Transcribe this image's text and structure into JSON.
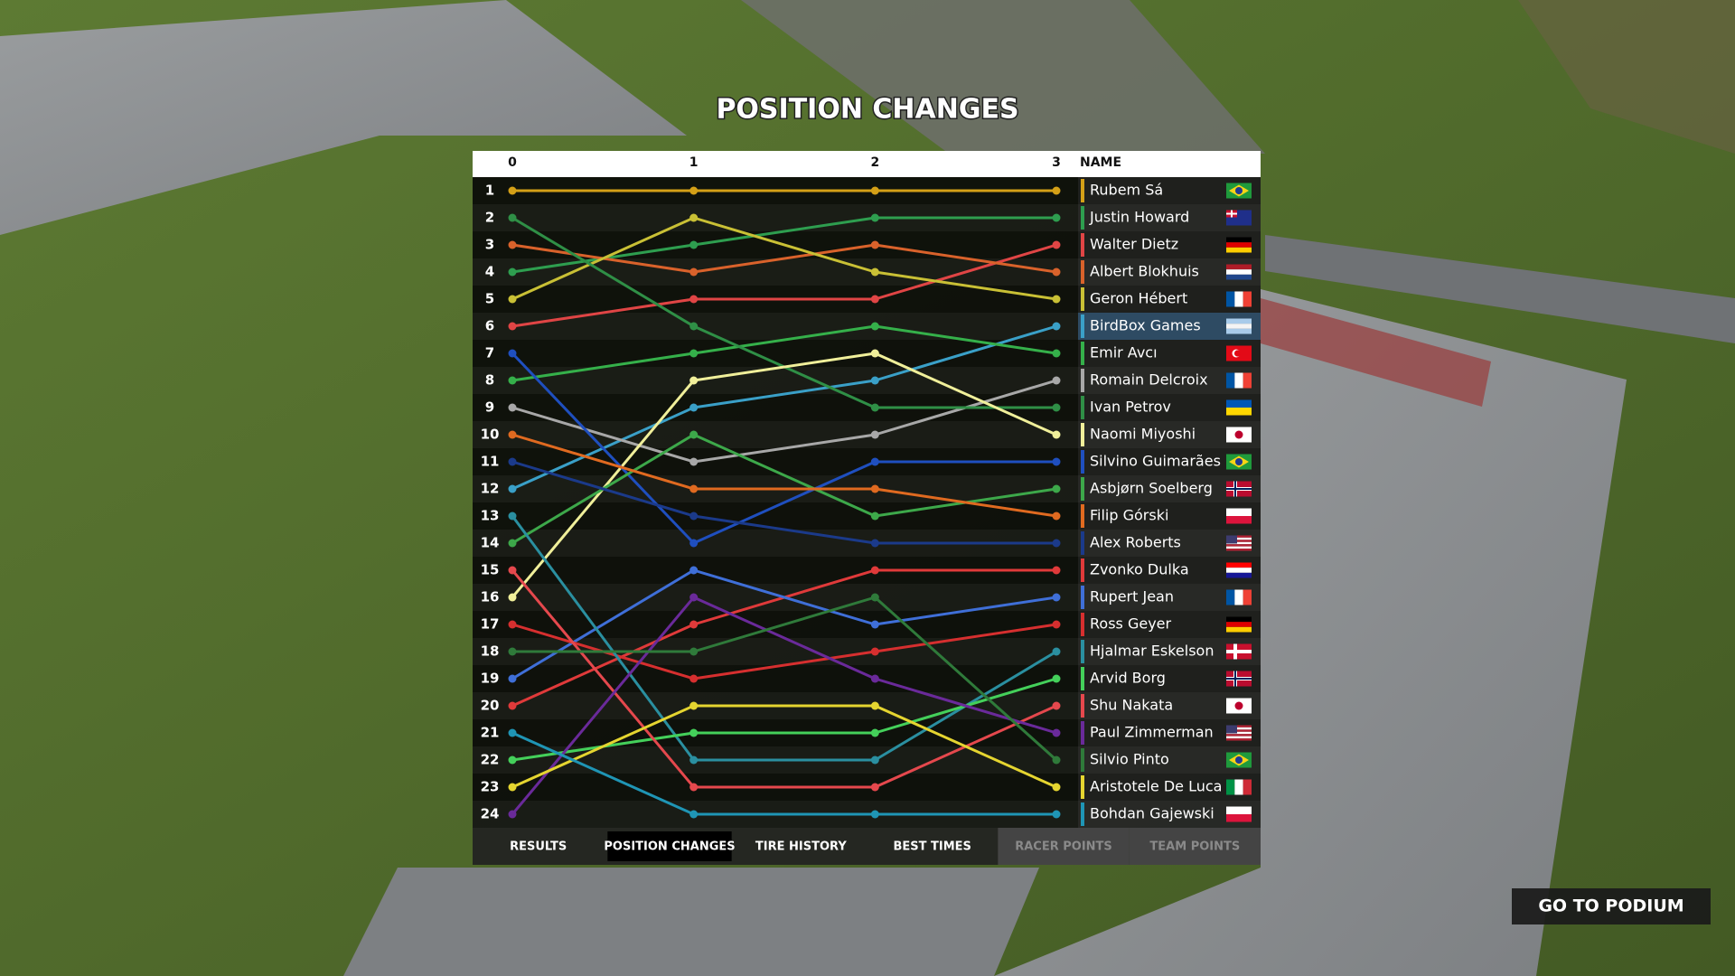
{
  "chart_data": {
    "type": "line",
    "title": "POSITION CHANGES",
    "name_header": "NAME",
    "x": [
      0,
      1,
      2,
      3
    ],
    "xlim": [
      0,
      3
    ],
    "xticks": [
      0,
      1,
      2,
      3
    ],
    "ylim": [
      1,
      24
    ],
    "y_inverted": true,
    "yticks": [
      1,
      2,
      3,
      4,
      5,
      6,
      7,
      8,
      9,
      10,
      11,
      12,
      13,
      14,
      15,
      16,
      17,
      18,
      19,
      20,
      21,
      22,
      23,
      24
    ],
    "series": [
      {
        "name": "Rubem Sá",
        "color": "#d4a017",
        "values": [
          1,
          1,
          1,
          1
        ]
      },
      {
        "name": "Justin Howard",
        "color": "#2e9e4f",
        "values": [
          4,
          3,
          2,
          2
        ]
      },
      {
        "name": "Walter Dietz",
        "color": "#e04545",
        "values": [
          6,
          5,
          5,
          3
        ]
      },
      {
        "name": "Albert Blokhuis",
        "color": "#d9622b",
        "values": [
          3,
          4,
          3,
          4
        ]
      },
      {
        "name": "Geron Hébert",
        "color": "#c9c035",
        "values": [
          5,
          2,
          4,
          5
        ]
      },
      {
        "name": "BirdBox Games",
        "color": "#3aa0c8",
        "values": [
          12,
          9,
          8,
          6
        ]
      },
      {
        "name": "Emir Avcı",
        "color": "#35b04a",
        "values": [
          8,
          7,
          6,
          7
        ]
      },
      {
        "name": "Romain Delcroix",
        "color": "#a8a8a8",
        "values": [
          9,
          11,
          10,
          8
        ]
      },
      {
        "name": "Ivan Petrov",
        "color": "#2f8f46",
        "values": [
          2,
          6,
          9,
          9
        ]
      },
      {
        "name": "Naomi Miyoshi",
        "color": "#f0ef9a",
        "values": [
          16,
          8,
          7,
          10
        ]
      },
      {
        "name": "Silvino Guimarães",
        "color": "#1f4fbf",
        "values": [
          7,
          14,
          11,
          11
        ]
      },
      {
        "name": "Asbjørn Soelberg",
        "color": "#3da84a",
        "values": [
          14,
          10,
          13,
          12
        ]
      },
      {
        "name": "Filip Górski",
        "color": "#e06a20",
        "values": [
          10,
          12,
          12,
          13
        ]
      },
      {
        "name": "Alex Roberts",
        "color": "#1b3a8a",
        "values": [
          11,
          13,
          14,
          14
        ]
      },
      {
        "name": "Zvonko Dulka",
        "color": "#e03a3a",
        "values": [
          20,
          17,
          15,
          15
        ]
      },
      {
        "name": "Rupert Jean",
        "color": "#3f6fd8",
        "values": [
          19,
          15,
          17,
          16
        ]
      },
      {
        "name": "Ross Geyer",
        "color": "#d62f2f",
        "values": [
          17,
          19,
          18,
          17
        ]
      },
      {
        "name": "Hjalmar Eskelson",
        "color": "#2a8fa0",
        "values": [
          13,
          22,
          22,
          18
        ]
      },
      {
        "name": "Arvid Borg",
        "color": "#44d05a",
        "values": [
          22,
          21,
          21,
          19
        ]
      },
      {
        "name": "Shu Nakata",
        "color": "#e5484d",
        "values": [
          15,
          23,
          23,
          20
        ]
      },
      {
        "name": "Paul Zimmerman",
        "color": "#6a2a9a",
        "values": [
          24,
          16,
          19,
          21
        ]
      },
      {
        "name": "Silvio Pinto",
        "color": "#2f7a3a",
        "values": [
          18,
          18,
          16,
          22
        ]
      },
      {
        "name": "Aristotele De Luca",
        "color": "#e5d530",
        "values": [
          23,
          20,
          20,
          23
        ]
      },
      {
        "name": "Bohdan Gajewski",
        "color": "#1f95b5",
        "values": [
          21,
          24,
          24,
          24
        ]
      }
    ]
  },
  "tabs": [
    {
      "label": "RESULTS",
      "state": "normal"
    },
    {
      "label": "POSITION CHANGES",
      "state": "active"
    },
    {
      "label": "TIRE HISTORY",
      "state": "normal"
    },
    {
      "label": "BEST TIMES",
      "state": "normal"
    },
    {
      "label": "RACER POINTS",
      "state": "disabled"
    },
    {
      "label": "TEAM POINTS",
      "state": "disabled"
    }
  ],
  "button": {
    "label": "GO TO PODIUM"
  }
}
